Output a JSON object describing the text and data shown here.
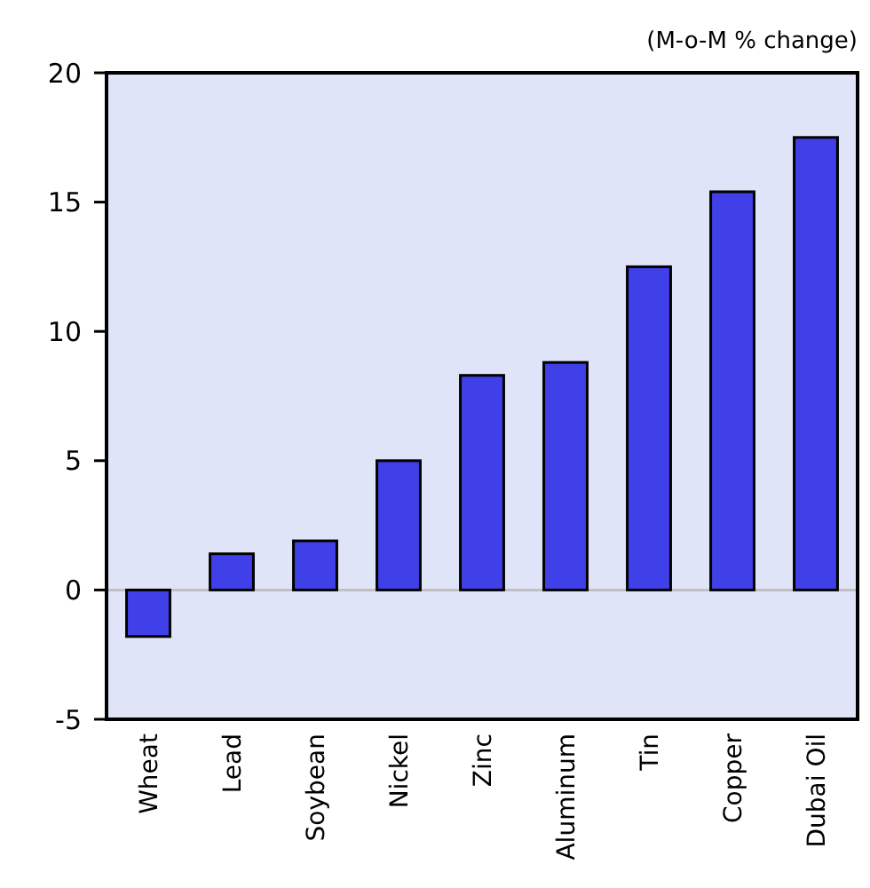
{
  "chart_data": {
    "type": "bar",
    "annotations": [
      "(M-o-M % change)"
    ],
    "categories": [
      "Wheat",
      "Lead",
      "Soybean",
      "Nickel",
      "Zinc",
      "Aluminum",
      "Tin",
      "Copper",
      "Dubai Oil"
    ],
    "values": [
      -1.8,
      1.4,
      1.9,
      5.0,
      8.3,
      8.8,
      12.5,
      15.4,
      17.5
    ],
    "color": "#4040e8",
    "ylim": [
      -5,
      20
    ],
    "yticks": [
      -5,
      0,
      5,
      10,
      15,
      20
    ],
    "ref_lines": [
      {
        "axis": "y",
        "value": 0,
        "color": "#c0c0c0"
      }
    ],
    "grid": false
  }
}
